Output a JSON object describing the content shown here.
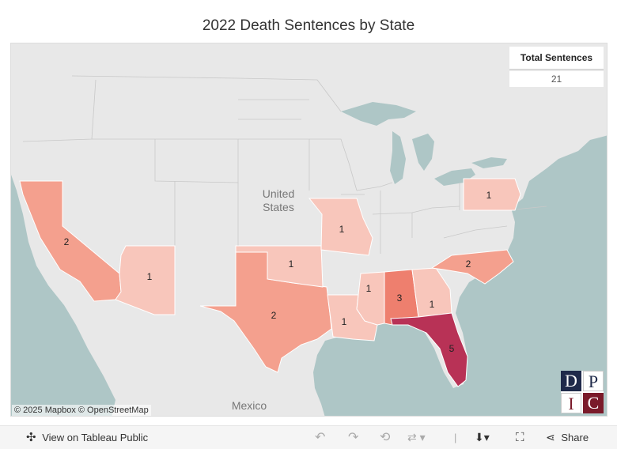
{
  "title": "2022 Death Sentences by State",
  "total": {
    "header": "Total Sentences",
    "value": "21"
  },
  "map_labels": {
    "country_us_line1": "United",
    "country_us_line2": "States",
    "country_mx": "Mexico"
  },
  "states": [
    {
      "name": "California",
      "value": "2",
      "color": "#f4a08e"
    },
    {
      "name": "Arizona",
      "value": "1",
      "color": "#f8c6bb"
    },
    {
      "name": "Texas",
      "value": "2",
      "color": "#f4a08e"
    },
    {
      "name": "Oklahoma",
      "value": "1",
      "color": "#f8c6bb"
    },
    {
      "name": "Missouri",
      "value": "1",
      "color": "#f8c6bb"
    },
    {
      "name": "Louisiana",
      "value": "1",
      "color": "#f8c6bb"
    },
    {
      "name": "Mississippi",
      "value": "1",
      "color": "#f8c6bb"
    },
    {
      "name": "Alabama",
      "value": "3",
      "color": "#ee7f6e"
    },
    {
      "name": "Georgia",
      "value": "1",
      "color": "#f8c6bb"
    },
    {
      "name": "Florida",
      "value": "5",
      "color": "#b83256"
    },
    {
      "name": "North Carolina",
      "value": "2",
      "color": "#f4a08e"
    },
    {
      "name": "Pennsylvania",
      "value": "1",
      "color": "#f8c6bb"
    }
  ],
  "attribution": "© 2025 Mapbox  © OpenStreetMap",
  "logo": {
    "letters": [
      "D",
      "P",
      "I",
      "C"
    ]
  },
  "toolbar": {
    "view_label": "View on Tableau Public",
    "share_label": "Share"
  }
}
